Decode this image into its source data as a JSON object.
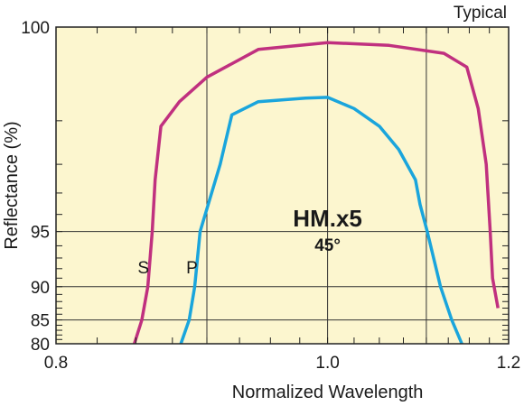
{
  "chart_data": {
    "type": "line",
    "title": "HM.x5",
    "subtitle": "45°",
    "corner_label": "Typical",
    "xlabel": "Normalized Wavelength",
    "ylabel": "Reflectance (%)",
    "xlim": [
      0.8,
      1.2
    ],
    "ylim": [
      80,
      100
    ],
    "x_scale": "reciprocal",
    "y_scale": "log-like",
    "x_ticks": [
      0.8,
      1.0,
      1.2
    ],
    "x_tick_labels": [
      "0.8",
      "1.0",
      "1.2"
    ],
    "x_gridlines": [
      0.9,
      1.0,
      1.1
    ],
    "y_ticks": [
      80,
      85,
      90,
      95,
      100
    ],
    "y_tick_labels": [
      "80",
      "85",
      "90",
      "95",
      "100"
    ],
    "y_gridlines": [
      85,
      90,
      95
    ],
    "grid": true,
    "plot_background": "#fcf6cf",
    "series": [
      {
        "name": "S",
        "color": "#c0307f",
        "label_at": [
          0.855,
          91.5
        ],
        "points": [
          [
            0.849,
            80.0
          ],
          [
            0.854,
            85.0
          ],
          [
            0.858,
            90.0
          ],
          [
            0.861,
            95.0
          ],
          [
            0.863,
            97.5
          ],
          [
            0.867,
            98.9
          ],
          [
            0.88,
            99.3
          ],
          [
            0.9,
            99.6
          ],
          [
            0.94,
            99.85
          ],
          [
            1.0,
            99.9
          ],
          [
            1.06,
            99.88
          ],
          [
            1.12,
            99.82
          ],
          [
            1.147,
            99.7
          ],
          [
            1.161,
            99.2
          ],
          [
            1.171,
            98.0
          ],
          [
            1.176,
            95.0
          ],
          [
            1.179,
            91.0
          ],
          [
            1.186,
            87.0
          ]
        ]
      },
      {
        "name": "P",
        "color": "#1aa5dc",
        "label_at": [
          0.889,
          91.5
        ],
        "points": [
          [
            0.881,
            80.0
          ],
          [
            0.887,
            85.0
          ],
          [
            0.891,
            90.0
          ],
          [
            0.895,
            95.0
          ],
          [
            0.901,
            96.5
          ],
          [
            0.91,
            98.0
          ],
          [
            0.919,
            99.1
          ],
          [
            0.94,
            99.3
          ],
          [
            0.98,
            99.35
          ],
          [
            1.0,
            99.36
          ],
          [
            1.025,
            99.2
          ],
          [
            1.05,
            98.9
          ],
          [
            1.07,
            98.4
          ],
          [
            1.088,
            97.5
          ],
          [
            1.093,
            96.5
          ],
          [
            1.101,
            95.0
          ],
          [
            1.116,
            90.0
          ],
          [
            1.129,
            85.0
          ],
          [
            1.141,
            80.0
          ]
        ]
      }
    ]
  }
}
